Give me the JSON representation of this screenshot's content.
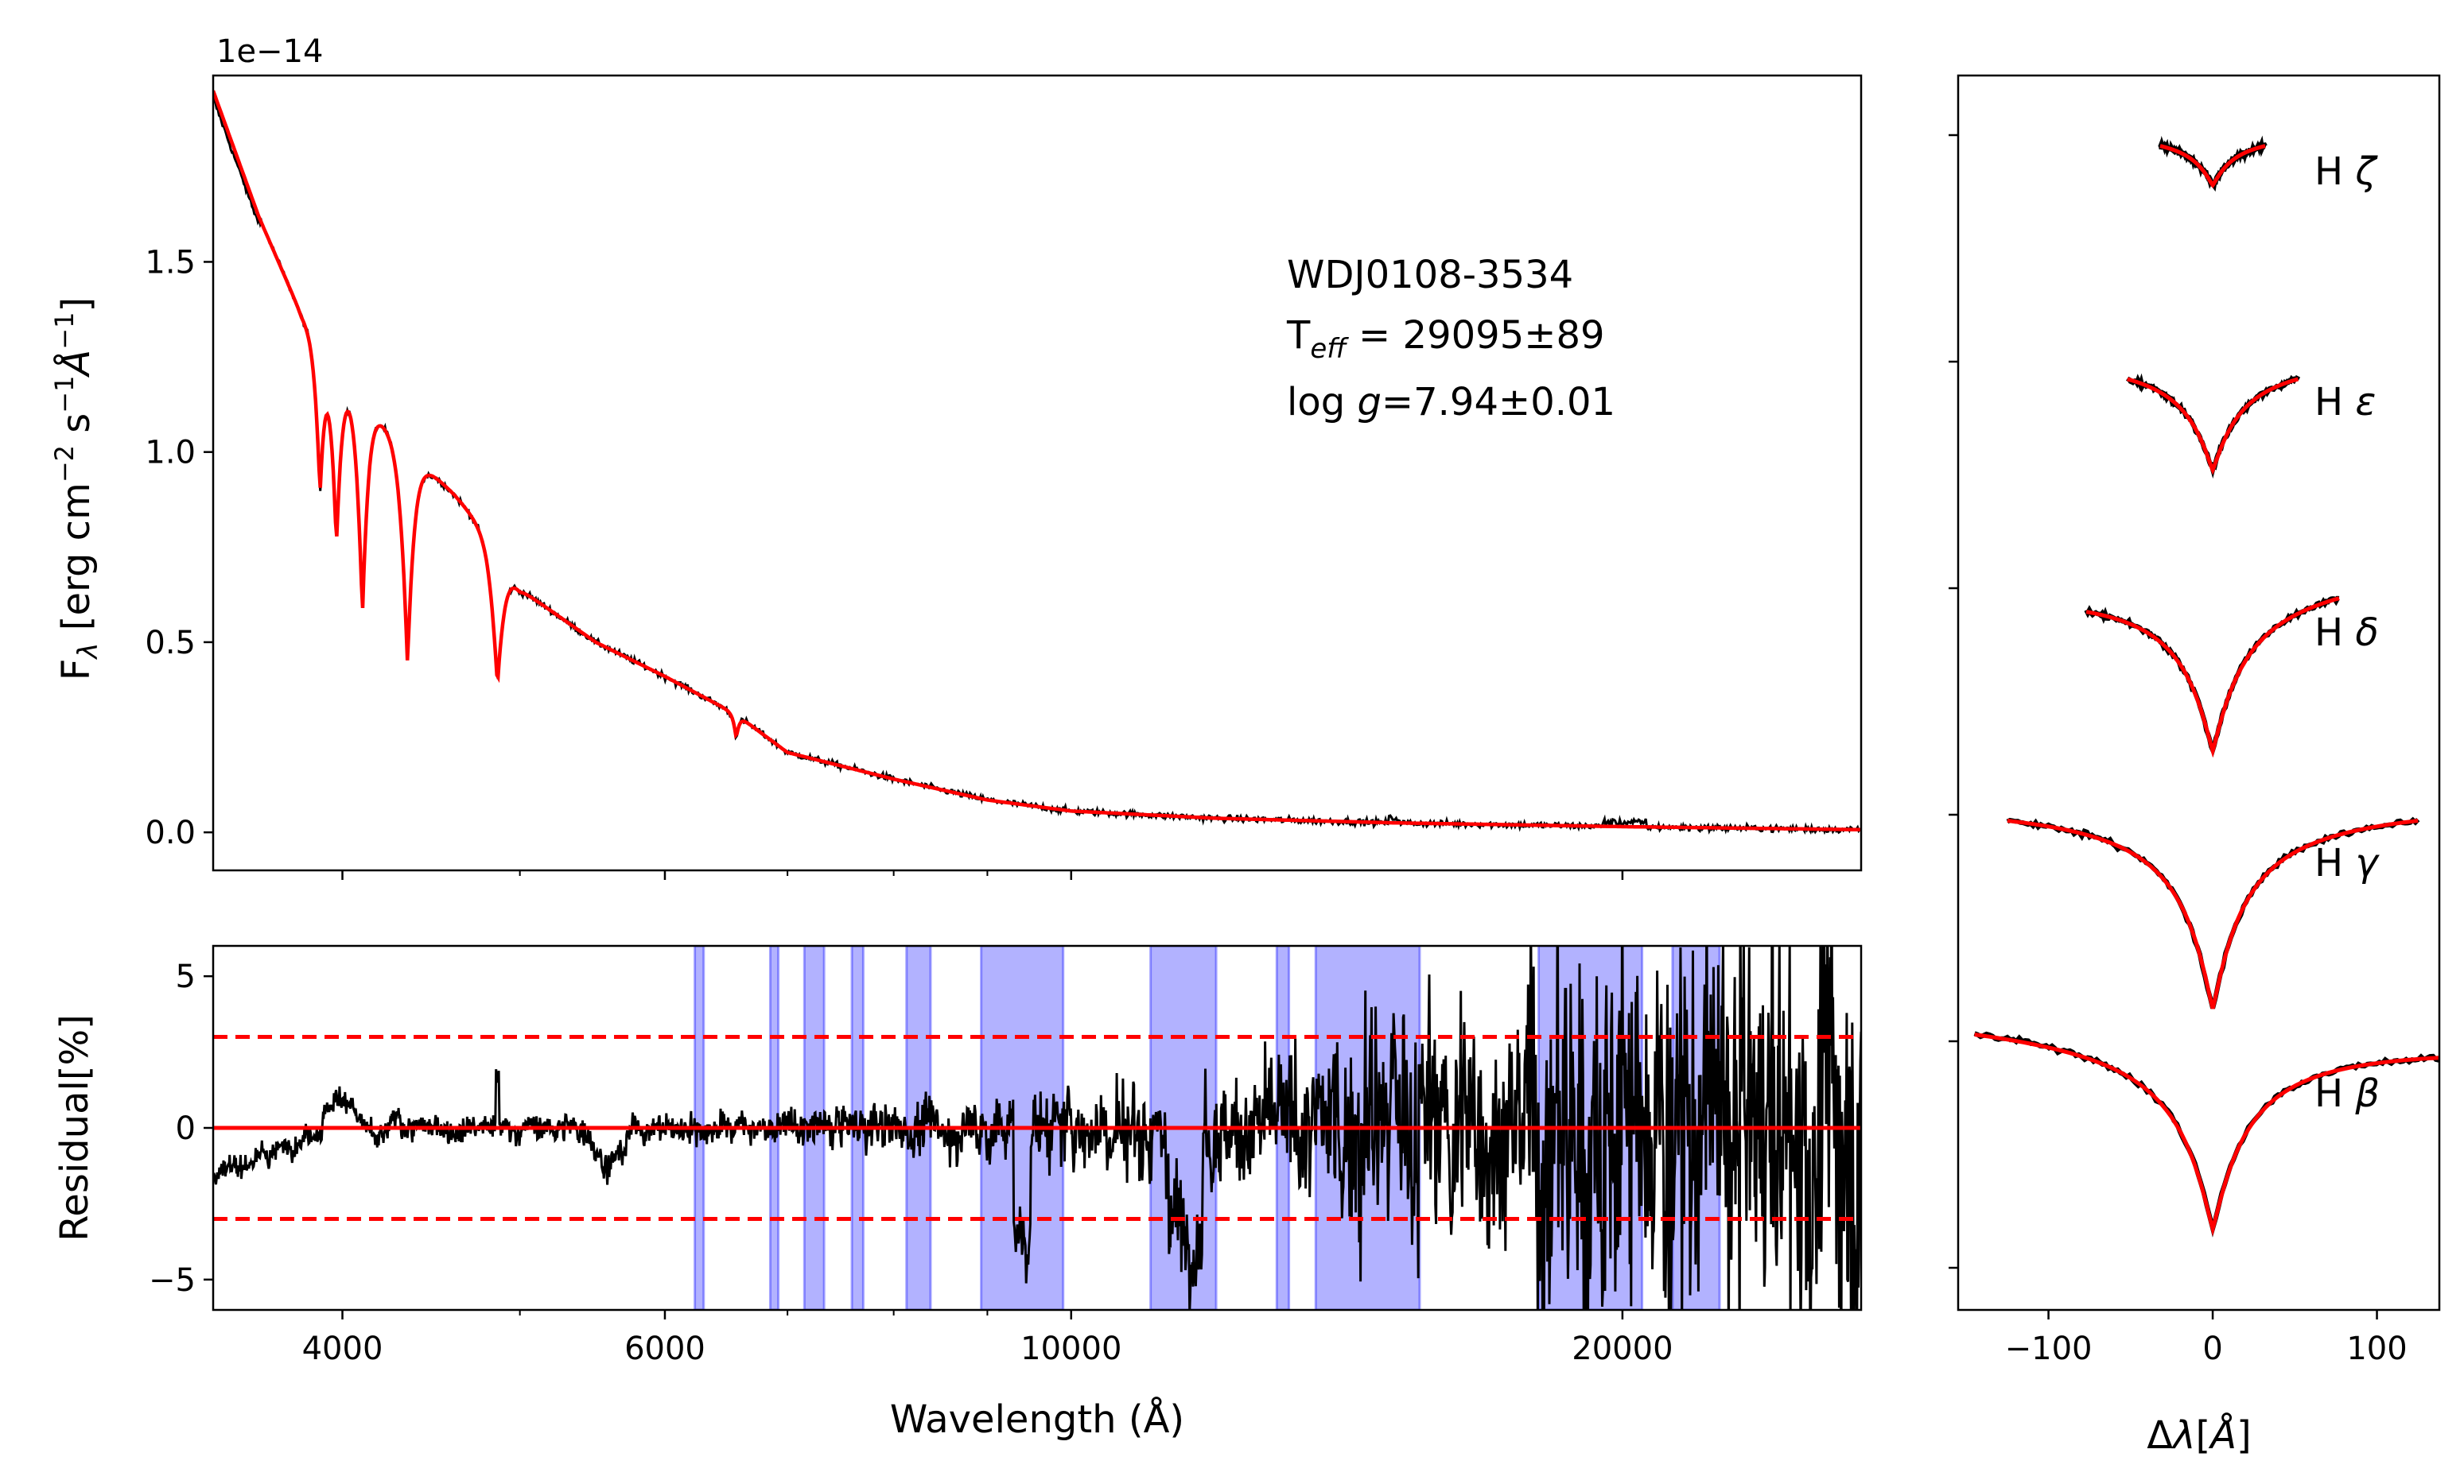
{
  "chart_data": [
    {
      "id": "sed",
      "type": "line",
      "xscale": "log",
      "xlim": [
        3400,
        27000
      ],
      "ylim": [
        -0.1,
        1.99
      ],
      "offset_label": "1e−14",
      "ylabel_html": "Fλ [erg cm⁻² s⁻¹ Å⁻¹]",
      "yticks": [
        {
          "v": 0.0,
          "label": "0.0"
        },
        {
          "v": 0.5,
          "label": "0.5"
        },
        {
          "v": 1.0,
          "label": "1.0"
        },
        {
          "v": 1.5,
          "label": "1.5"
        }
      ],
      "annotation": {
        "star": "WDJ0108-3534",
        "teff_prefix": "T",
        "teff_sub": "eff",
        "teff_value": " = 29095±89",
        "logg_prefix": "log ",
        "logg_var": "g",
        "logg_value": "=7.94±0.01"
      },
      "continuum": [
        [
          3400,
          1.95
        ],
        [
          3600,
          1.62
        ],
        [
          3800,
          1.36
        ],
        [
          4000,
          1.21
        ],
        [
          4200,
          1.09
        ],
        [
          4400,
          0.98
        ],
        [
          4600,
          0.89
        ],
        [
          4800,
          0.79
        ],
        [
          5000,
          0.64
        ],
        [
          5500,
          0.5
        ],
        [
          6000,
          0.41
        ],
        [
          6563,
          0.31
        ],
        [
          7000,
          0.21
        ],
        [
          8000,
          0.14
        ],
        [
          9000,
          0.085
        ],
        [
          10000,
          0.056
        ],
        [
          12000,
          0.037
        ],
        [
          15000,
          0.025
        ],
        [
          20000,
          0.015
        ],
        [
          27000,
          0.007
        ]
      ],
      "absorption_lines": [
        {
          "name": "Hζ",
          "lambda": 3889,
          "depth": 0.3,
          "width": 0.012
        },
        {
          "name": "Hε",
          "lambda": 3970,
          "depth": 0.38,
          "width": 0.013
        },
        {
          "name": "Hδ",
          "lambda": 4102,
          "depth": 0.5,
          "width": 0.014
        },
        {
          "name": "Hγ",
          "lambda": 4341,
          "depth": 0.56,
          "width": 0.016
        },
        {
          "name": "Hβ",
          "lambda": 4861,
          "depth": 0.48,
          "width": 0.017
        },
        {
          "name": "Hα",
          "lambda": 6563,
          "depth": 0.2,
          "width": 0.007
        }
      ],
      "series": [
        {
          "name": "observed",
          "color": "#000000"
        },
        {
          "name": "model",
          "color": "#ff0000"
        }
      ]
    },
    {
      "id": "residual",
      "type": "line",
      "xscale": "log",
      "xlim": [
        3400,
        27000
      ],
      "ylim": [
        -6,
        6
      ],
      "ylabel": "Residual[%]",
      "xlabel": "Wavelength (Å)",
      "xticks": [
        {
          "v": 4000,
          "label": "4000"
        },
        {
          "v": 6000,
          "label": "6000"
        },
        {
          "v": 10000,
          "label": "10000"
        },
        {
          "v": 20000,
          "label": "20000"
        }
      ],
      "minor_xticks": [
        5000,
        7000,
        8000,
        9000
      ],
      "yticks": [
        {
          "v": -5,
          "label": "−5"
        },
        {
          "v": 0,
          "label": "0"
        },
        {
          "v": 5,
          "label": "5"
        }
      ],
      "reference_lines": [
        {
          "y": 0,
          "style": "solid",
          "color": "#ff0000"
        },
        {
          "y": 3,
          "style": "dashed",
          "color": "#ff0000"
        },
        {
          "y": -3,
          "style": "dashed",
          "color": "#ff0000"
        }
      ],
      "masked_bands": [
        [
          6230,
          6300
        ],
        [
          6850,
          6920
        ],
        [
          7150,
          7330
        ],
        [
          7590,
          7700
        ],
        [
          8130,
          8380
        ],
        [
          8930,
          9900
        ],
        [
          11050,
          12000
        ],
        [
          12950,
          13150
        ],
        [
          13600,
          15500
        ],
        [
          18000,
          20500
        ],
        [
          21300,
          22600
        ]
      ],
      "band_color": "#0000ff",
      "noise_profile": [
        [
          3400,
          0.4
        ],
        [
          7000,
          0.7
        ],
        [
          9000,
          1.3
        ],
        [
          10000,
          1.7
        ],
        [
          11000,
          2.0
        ],
        [
          13500,
          2.8
        ],
        [
          14000,
          4.5
        ],
        [
          15500,
          5.5
        ],
        [
          17500,
          4.0
        ],
        [
          18000,
          8.0
        ],
        [
          27000,
          9.0
        ]
      ]
    },
    {
      "id": "balmer",
      "type": "line",
      "xlim": [
        -155,
        138
      ],
      "xlabel": "Δλ[Å]",
      "xticks": [
        {
          "v": -100,
          "label": "−100"
        },
        {
          "v": 0,
          "label": "0"
        },
        {
          "v": 100,
          "label": "100"
        }
      ],
      "profiles": [
        {
          "label": "H",
          "greek": "ζ",
          "halfwidth": 32,
          "depth": 0.24,
          "baseline": 0.0,
          "shape": 14,
          "right_offset": 0.0
        },
        {
          "label": "H",
          "greek": "ε",
          "halfwidth": 52,
          "depth": 0.52,
          "baseline": 1.0,
          "shape": 18,
          "right_offset": 0.0
        },
        {
          "label": "H",
          "greek": "δ",
          "halfwidth": 77,
          "depth": 0.78,
          "baseline": 2.0,
          "shape": 20,
          "right_offset": 0.03
        },
        {
          "label": "H",
          "greek": "γ",
          "halfwidth": 125,
          "depth": 0.93,
          "baseline": 3.0,
          "shape": 20,
          "right_offset": 0.0
        },
        {
          "label": "H",
          "greek": "β",
          "halfwidth": 145,
          "depth": 0.9,
          "baseline": 4.0,
          "shape": 22,
          "right_offset": -0.05
        }
      ]
    }
  ]
}
